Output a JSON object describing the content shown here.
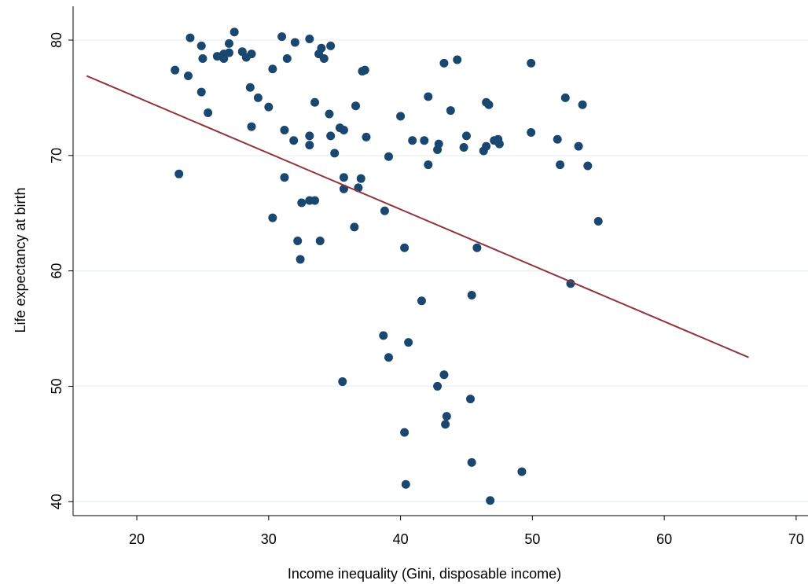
{
  "chart_data": {
    "type": "scatter",
    "xlabel": "Income inequality (Gini, disposable income)",
    "ylabel": "Life expectancy at birth",
    "color": "#1a476f",
    "x": [
      22.9,
      24.05,
      23.9,
      24.9,
      25.0,
      24.9,
      25.4,
      23.2,
      26.1,
      26.6,
      26.6,
      27.0,
      27.0,
      27.4,
      28.0,
      28.3,
      28.7,
      28.6,
      28.7,
      29.2,
      30.0,
      30.3,
      30.3,
      31.0,
      32.0,
      33.1,
      31.4,
      31.2,
      31.2,
      31.9,
      32.5,
      32.2,
      32.4,
      33.1,
      33.1,
      33.1,
      33.5,
      33.5,
      33.8,
      34.0,
      34.2,
      34.7,
      33.9,
      34.6,
      34.7,
      35.0,
      35.4,
      35.7,
      35.7,
      35.7,
      35.6,
      36.6,
      36.5,
      36.8,
      37.0,
      37.1,
      37.3,
      37.4,
      38.8,
      38.7,
      39.1,
      39.1,
      40.0,
      40.3,
      40.9,
      40.6,
      40.3,
      40.4,
      41.6,
      41.8,
      42.1,
      42.1,
      42.8,
      42.9,
      42.8,
      43.3,
      43.3,
      43.5,
      43.4,
      43.8,
      44.3,
      44.8,
      45.0,
      45.3,
      45.4,
      45.4,
      45.8,
      46.3,
      46.5,
      46.7,
      46.5,
      46.8,
      47.1,
      47.4,
      47.5,
      49.2,
      49.9,
      49.9,
      51.9,
      52.1,
      52.5,
      52.9,
      53.5,
      53.8,
      54.2,
      55.0
    ],
    "values": [
      77.4,
      80.2,
      76.9,
      79.5,
      78.4,
      75.5,
      73.7,
      68.4,
      78.6,
      78.8,
      78.4,
      79.7,
      78.9,
      80.7,
      79.0,
      78.5,
      78.8,
      75.9,
      72.5,
      75.0,
      74.2,
      77.5,
      64.6,
      80.3,
      79.8,
      80.1,
      78.4,
      72.2,
      68.1,
      71.3,
      65.9,
      62.6,
      61.0,
      71.7,
      70.9,
      66.1,
      66.1,
      74.6,
      78.8,
      79.3,
      78.4,
      79.5,
      62.6,
      73.6,
      71.7,
      70.2,
      72.4,
      72.2,
      68.1,
      67.1,
      50.4,
      74.3,
      63.8,
      67.2,
      68.0,
      77.3,
      77.4,
      71.6,
      65.2,
      54.4,
      52.5,
      69.9,
      73.4,
      62.0,
      71.3,
      53.8,
      46.0,
      41.5,
      57.4,
      71.3,
      75.1,
      69.2,
      70.5,
      71.0,
      50.0,
      78.0,
      51.0,
      47.4,
      46.7,
      73.9,
      78.3,
      70.7,
      71.7,
      48.9,
      57.9,
      43.4,
      62.0,
      70.4,
      74.6,
      74.4,
      70.8,
      40.1,
      71.3,
      71.4,
      71.0,
      42.6,
      78.0,
      72.0,
      71.4,
      69.2,
      75.0,
      58.9,
      70.8,
      74.4,
      69.1,
      64.3
    ],
    "fit": {
      "x": [
        16.2,
        66.4
      ],
      "values": [
        76.9,
        52.5
      ],
      "color": "#90353b"
    },
    "xlim": [
      15.17,
      70.9
    ],
    "ylim": [
      38.79,
      82.93
    ],
    "xticks": [
      20,
      30,
      40,
      50,
      60,
      70
    ],
    "yticks": [
      40,
      50,
      60,
      70,
      80
    ],
    "grid": true
  }
}
